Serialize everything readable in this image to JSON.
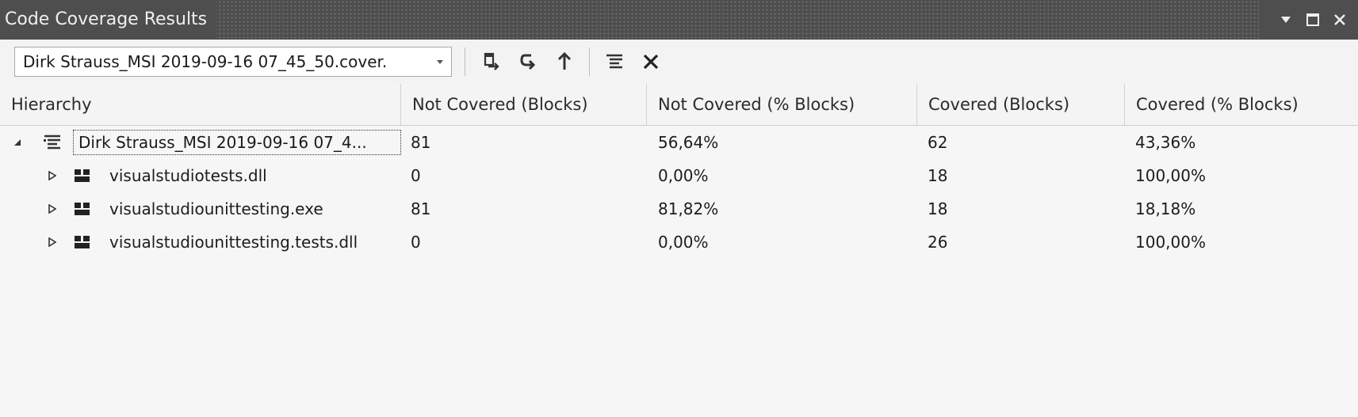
{
  "window": {
    "title": "Code Coverage Results"
  },
  "toolbar": {
    "run_selector_value": "Dirk Strauss_MSI 2019-09-16 07_45_50.cover.",
    "buttons": [
      {
        "name": "export-results",
        "icon": "export-icon"
      },
      {
        "name": "merge-results",
        "icon": "merge-icon"
      },
      {
        "name": "import-results",
        "icon": "import-icon"
      },
      {
        "name": "show-coloring",
        "icon": "coloring-icon"
      },
      {
        "name": "remove-results",
        "icon": "close-icon"
      }
    ]
  },
  "grid": {
    "columns": [
      "Hierarchy",
      "Not Covered (Blocks)",
      "Not Covered (% Blocks)",
      "Covered (Blocks)",
      "Covered (% Blocks)"
    ],
    "rows": [
      {
        "name": "Dirk Strauss_MSI 2019-09-16 07_4...",
        "not_covered_blocks": "81",
        "not_covered_pct": "56,64%",
        "covered_blocks": "62",
        "covered_pct": "43,36%",
        "expanded": true,
        "level": 0
      },
      {
        "name": "visualstudiotests.dll",
        "not_covered_blocks": "0",
        "not_covered_pct": "0,00%",
        "covered_blocks": "18",
        "covered_pct": "100,00%",
        "expanded": false,
        "level": 1
      },
      {
        "name": "visualstudiounittesting.exe",
        "not_covered_blocks": "81",
        "not_covered_pct": "81,82%",
        "covered_blocks": "18",
        "covered_pct": "18,18%",
        "expanded": false,
        "level": 1
      },
      {
        "name": "visualstudiounittesting.tests.dll",
        "not_covered_blocks": "0",
        "not_covered_pct": "0,00%",
        "covered_blocks": "26",
        "covered_pct": "100,00%",
        "expanded": false,
        "level": 1
      }
    ]
  }
}
